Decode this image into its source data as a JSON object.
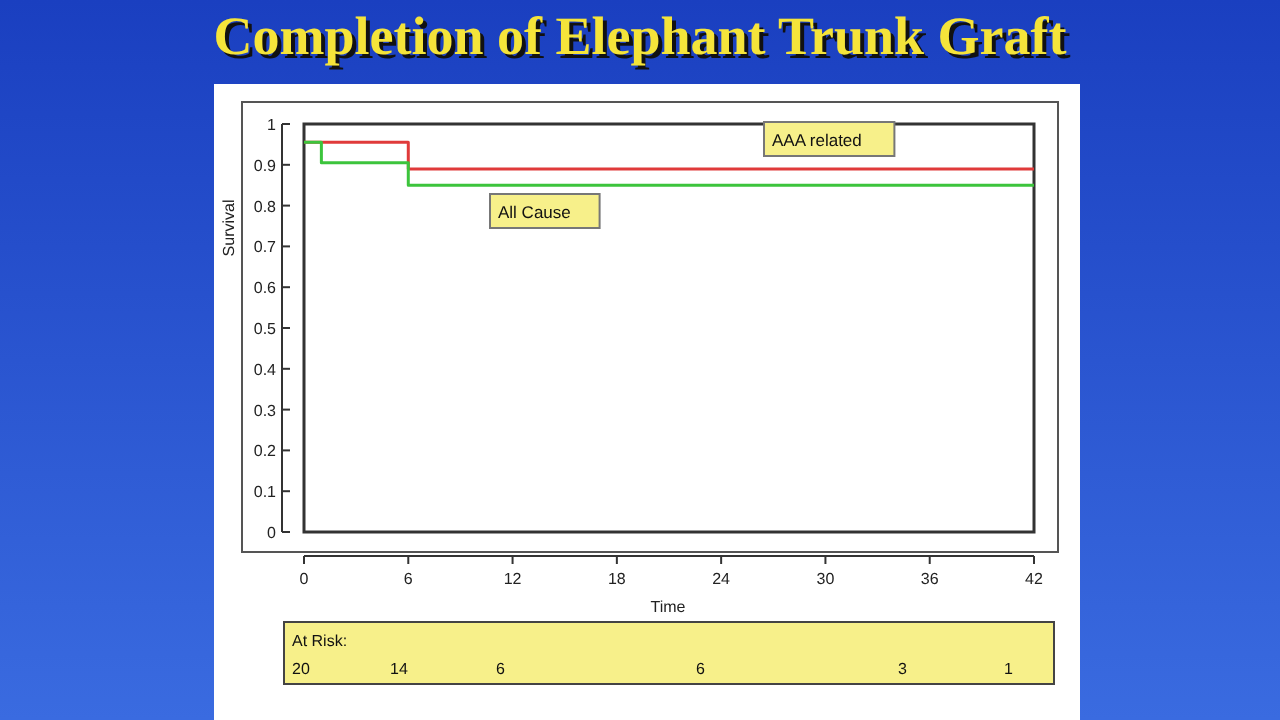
{
  "chart_data": {
    "type": "step",
    "title": "Completion of Elephant Trunk Graft",
    "xlabel": "Time",
    "ylabel": "Survival",
    "xlim": [
      0,
      42
    ],
    "xticks": [
      0,
      6,
      12,
      18,
      24,
      30,
      36,
      42
    ],
    "ylim": [
      0,
      1
    ],
    "yticks": [
      0,
      0.1,
      0.2,
      0.3,
      0.4,
      0.5,
      0.6,
      0.7,
      0.8,
      0.9,
      1
    ],
    "series": [
      {
        "name": "AAA related",
        "color": "#e03a3a",
        "x": [
          0,
          6,
          42
        ],
        "values": [
          0.955,
          0.89,
          0.89
        ]
      },
      {
        "name": "All Cause",
        "color": "#3cc43c",
        "x": [
          0,
          1,
          6,
          42
        ],
        "values": [
          0.955,
          0.905,
          0.85,
          0.85
        ]
      }
    ],
    "annotations": [
      "At Risk:",
      "20",
      "14",
      "6",
      "6",
      "3",
      "1"
    ],
    "grid": false
  }
}
